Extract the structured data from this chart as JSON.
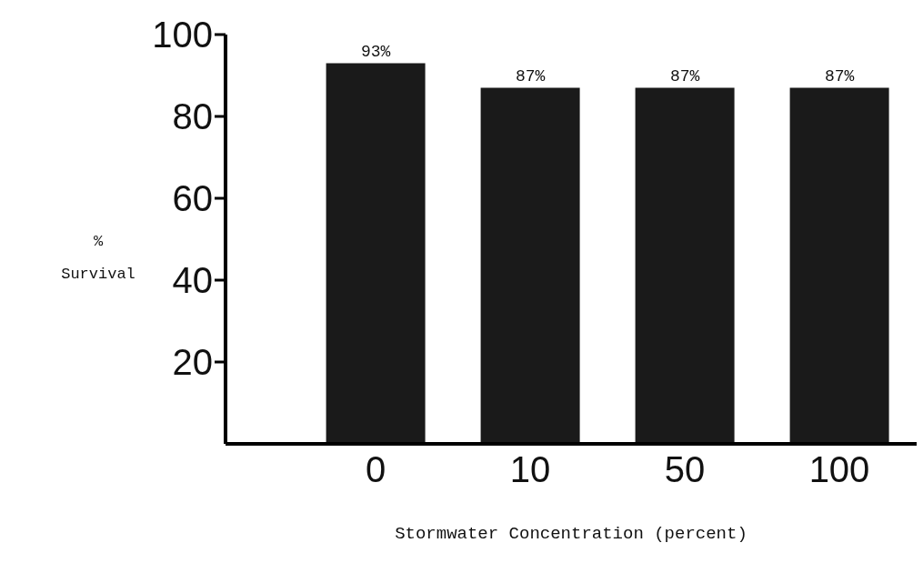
{
  "chart_data": {
    "type": "bar",
    "xlabel": "Stormwater Concentration (percent)",
    "ylabel": "% Survival",
    "categories": [
      "0",
      "10",
      "50",
      "100"
    ],
    "values": [
      93,
      87,
      87,
      87
    ],
    "value_labels": [
      "93%",
      "87%",
      "87%",
      "87%"
    ],
    "color": "#1a1a1a",
    "ylim": [
      0,
      100
    ],
    "yticks": [
      20,
      40,
      60,
      80,
      100
    ]
  }
}
